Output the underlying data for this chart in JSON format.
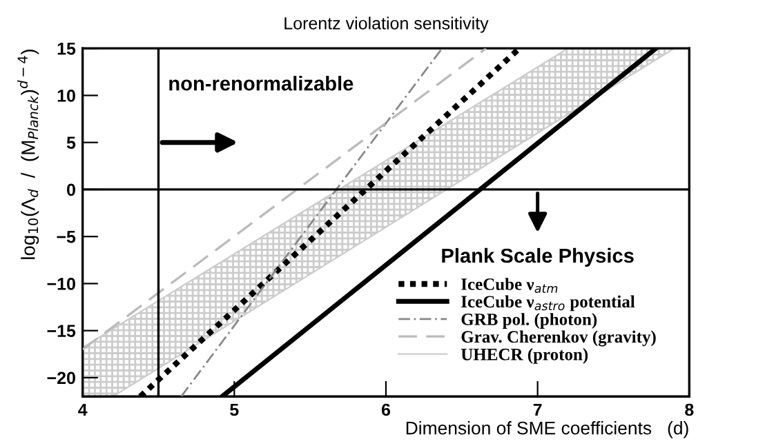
{
  "chart_data": {
    "type": "line",
    "title": "Lorentz violation sensitivity",
    "xlabel": "Dimension of SME coefficients   (d)",
    "ylabel": "log$_{10}$(Λ$_{d}$  /  (M$_{Planck}$)$^{d−4}$)",
    "xlim": [
      4,
      8
    ],
    "ylim": [
      -22,
      15
    ],
    "xticks": [
      4,
      5,
      6,
      7,
      8
    ],
    "yticks": [
      -20,
      -15,
      -10,
      -5,
      0,
      5,
      10,
      15
    ],
    "grid": false,
    "legend": "bottom right",
    "series": [
      {
        "name": "IceCube ν$_{atm}$",
        "color": "#000000",
        "line_style": "dotted",
        "x": [
          4.38,
          6.88
        ],
        "values": [
          -22,
          15
        ]
      },
      {
        "name": "IceCube ν$_{astro}$ potential",
        "color": "#000000",
        "line_style": "solid",
        "x": [
          4.92,
          7.78
        ],
        "values": [
          -22,
          15
        ]
      },
      {
        "name": "GRB pol. (photon)",
        "color": "#888888",
        "line_style": "dashdot",
        "x": [
          4.65,
          6.37
        ],
        "values": [
          -22,
          15
        ]
      },
      {
        "name": "Grav. Cherenkov (gravity)",
        "color": "#bbbbbb",
        "line_style": "dashed",
        "x": [
          4.0,
          6.66
        ],
        "values": [
          -17,
          15
        ]
      },
      {
        "name": "UHECR (proton)",
        "color": "#cccccc",
        "line_style": "solid",
        "x": [
          4.0,
          4.2,
          7.2,
          7.9
        ],
        "values": [
          null,
          null,
          null,
          null
        ],
        "lower": [
          -22,
          -22,
          8,
          15
        ],
        "upper": [
          -16.8,
          -14.8,
          15,
          15
        ]
      }
    ],
    "ref_lines": [
      {
        "axis": "x",
        "value": 4.5,
        "label": null
      },
      {
        "axis": "y",
        "value": 0,
        "label": null
      }
    ],
    "annotations": [
      {
        "text": "non-renormalizable",
        "x": 4.5,
        "y": 5
      },
      {
        "text": "Plank Scale Physics",
        "x": 7,
        "y": 0
      }
    ]
  }
}
